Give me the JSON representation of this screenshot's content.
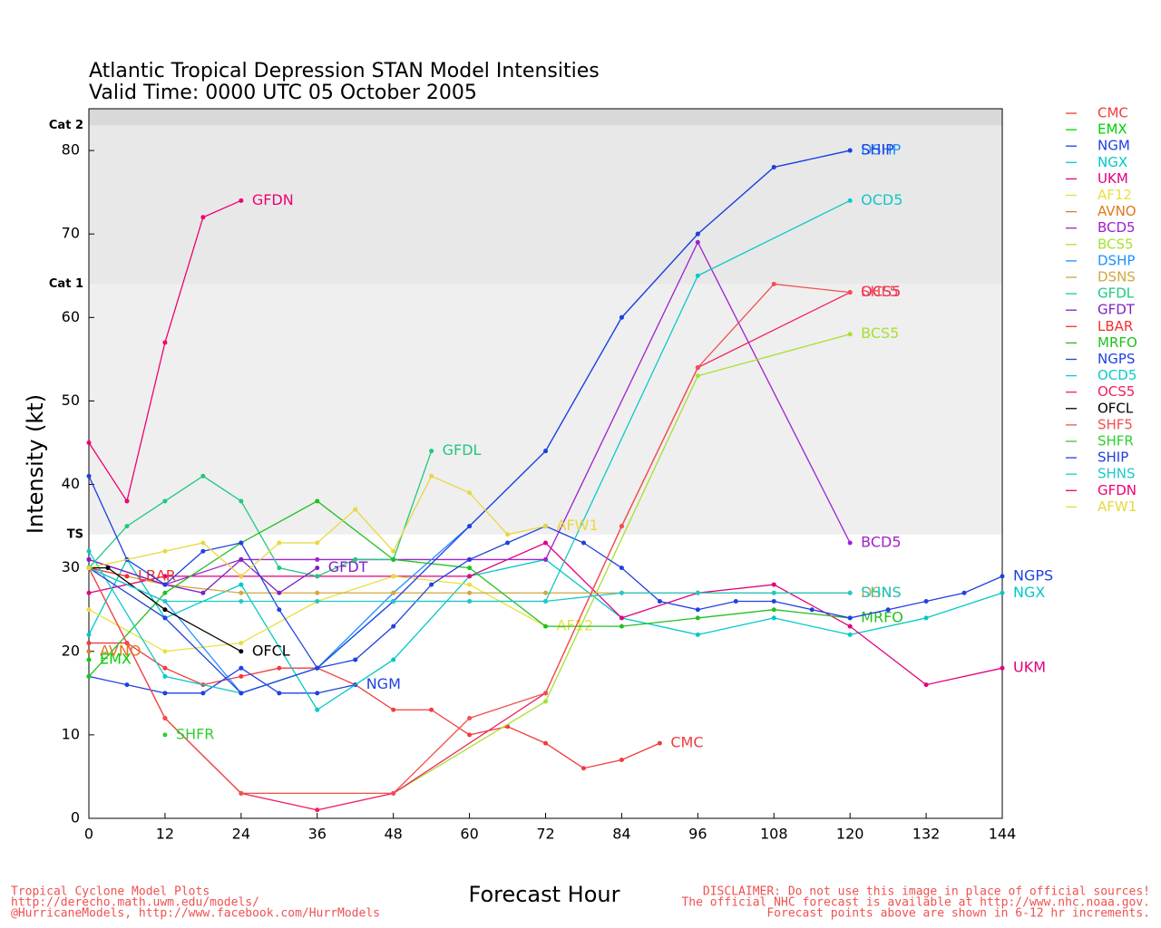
{
  "chart_data": {
    "type": "line",
    "title": "Atlantic Tropical Depression STAN Model Intensities",
    "subtitle": "Valid Time: 0000 UTC 05 October 2005",
    "xlabel": "Forecast Hour",
    "ylabel": "Intensity (kt)",
    "xlim": [
      0,
      144
    ],
    "ylim": [
      0,
      85
    ],
    "xticks": [
      0,
      12,
      24,
      36,
      48,
      60,
      72,
      84,
      96,
      108,
      120,
      132,
      144
    ],
    "yticks": [
      0,
      10,
      20,
      30,
      40,
      50,
      60,
      70,
      80
    ],
    "bands": [
      {
        "label": "TS",
        "from": 34,
        "color": "#efefef"
      },
      {
        "label": "Cat 1",
        "from": 64,
        "color": "#e8e8e8"
      },
      {
        "label": "Cat 2",
        "from": 83,
        "color": "#d9d9d9"
      }
    ],
    "series": [
      {
        "name": "CMC",
        "color": "#f03c3c",
        "x": [
          0,
          6,
          12,
          18,
          24,
          30,
          36,
          42,
          48,
          54,
          60,
          66,
          72,
          78,
          84,
          90
        ],
        "values": [
          21,
          21,
          18,
          16,
          17,
          18,
          18,
          16,
          13,
          13,
          10,
          11,
          9,
          6,
          7,
          9
        ]
      },
      {
        "name": "EMX",
        "color": "#00d000",
        "x": [
          0
        ],
        "values": [
          19
        ]
      },
      {
        "name": "NGM",
        "color": "#2040e0",
        "x": [
          0,
          6,
          12,
          18,
          24,
          30,
          36,
          42
        ],
        "values": [
          17,
          16,
          15,
          15,
          18,
          15,
          15,
          16
        ]
      },
      {
        "name": "NGX",
        "color": "#00c8c8",
        "x": [
          0,
          6,
          12,
          24,
          36,
          48,
          60,
          72,
          84,
          96,
          108,
          120,
          132,
          144
        ],
        "values": [
          22,
          31,
          24,
          28,
          13,
          19,
          29,
          31,
          24,
          22,
          24,
          22,
          24,
          27
        ]
      },
      {
        "name": "UKM",
        "color": "#e0007f",
        "x": [
          0,
          12,
          24,
          36,
          48,
          60,
          72,
          84,
          96,
          108,
          120,
          132,
          144
        ],
        "values": [
          27,
          29,
          29,
          29,
          29,
          29,
          33,
          24,
          27,
          28,
          23,
          16,
          18
        ]
      },
      {
        "name": "AF12",
        "color": "#e8e040",
        "x": [
          0,
          12,
          24,
          36,
          48,
          60,
          72
        ],
        "values": [
          25,
          20,
          21,
          26,
          29,
          28,
          23
        ]
      },
      {
        "name": "AVNO",
        "color": "#e07820",
        "x": [
          0
        ],
        "values": [
          20
        ]
      },
      {
        "name": "BCD5",
        "color": "#a020d0",
        "x": [
          0,
          12,
          24,
          36,
          48,
          60,
          72,
          96,
          120
        ],
        "values": [
          31,
          28,
          31,
          31,
          31,
          31,
          31,
          69,
          33
        ]
      },
      {
        "name": "BCS5",
        "color": "#a8e030",
        "x": [
          0,
          12,
          24,
          48,
          72,
          96,
          120
        ],
        "values": [
          30,
          12,
          3,
          3,
          14,
          53,
          58
        ]
      },
      {
        "name": "DSHP",
        "color": "#1e90ff",
        "x": [
          0,
          12,
          24,
          36,
          48,
          60,
          72,
          84,
          96,
          108,
          120
        ],
        "values": [
          30,
          26,
          15,
          18,
          27,
          35,
          44,
          60,
          70,
          78,
          80
        ]
      },
      {
        "name": "DSNS",
        "color": "#d0a840",
        "x": [
          0,
          12,
          24,
          36,
          48,
          60,
          72,
          84,
          96,
          108,
          120
        ],
        "values": [
          30,
          28,
          27,
          27,
          27,
          27,
          27,
          27,
          27,
          27,
          27
        ]
      },
      {
        "name": "GFDL",
        "color": "#20c880",
        "x": [
          0,
          6,
          12,
          18,
          24,
          30,
          36,
          42,
          48,
          54
        ],
        "values": [
          30,
          35,
          38,
          41,
          38,
          30,
          29,
          31,
          31,
          44
        ]
      },
      {
        "name": "GFDT",
        "color": "#8020c0",
        "x": [
          0,
          12,
          18,
          24,
          30,
          36
        ],
        "values": [
          31,
          28,
          27,
          31,
          27,
          30
        ]
      },
      {
        "name": "LBAR",
        "color": "#f03030",
        "x": [
          0,
          6
        ],
        "values": [
          30,
          29
        ]
      },
      {
        "name": "MRFO",
        "color": "#20c020",
        "x": [
          0,
          12,
          24,
          36,
          48,
          60,
          72,
          84,
          96,
          108,
          120
        ],
        "values": [
          17,
          27,
          33,
          38,
          31,
          30,
          23,
          23,
          24,
          25,
          24
        ]
      },
      {
        "name": "NGPS",
        "color": "#2040e0",
        "x": [
          0,
          6,
          12,
          18,
          24,
          30,
          36,
          42,
          48,
          54,
          60,
          66,
          72,
          78,
          84,
          90,
          96,
          102,
          108,
          114,
          120,
          126,
          132,
          138,
          144
        ],
        "values": [
          41,
          31,
          28,
          32,
          33,
          25,
          18,
          19,
          23,
          28,
          31,
          33,
          35,
          33,
          30,
          26,
          25,
          26,
          26,
          25,
          24,
          25,
          26,
          27,
          29
        ]
      },
      {
        "name": "OCD5",
        "color": "#10c8c8",
        "x": [
          0,
          12,
          24,
          36,
          48,
          60,
          72,
          96,
          120
        ],
        "values": [
          32,
          17,
          15,
          18,
          26,
          26,
          26,
          65,
          74
        ]
      },
      {
        "name": "OCS5",
        "color": "#f0205a",
        "x": [
          0,
          12,
          24,
          36,
          48,
          72,
          84,
          96,
          120
        ],
        "values": [
          30,
          12,
          3,
          1,
          3,
          15,
          35,
          54,
          63
        ]
      },
      {
        "name": "OFCL",
        "color": "#000000",
        "x": [
          0,
          3,
          12,
          24
        ],
        "values": [
          30,
          30,
          25,
          20
        ]
      },
      {
        "name": "SHF5",
        "color": "#f05050",
        "x": [
          0,
          12,
          24,
          48,
          60,
          72,
          84,
          96,
          108,
          120
        ],
        "values": [
          30,
          12,
          3,
          3,
          12,
          15,
          35,
          54,
          64,
          63
        ]
      },
      {
        "name": "SHFR",
        "color": "#30d030",
        "x": [
          12
        ],
        "values": [
          10
        ]
      },
      {
        "name": "SHIP",
        "color": "#2040e0",
        "x": [
          0,
          12,
          24,
          36,
          48,
          60,
          72,
          84,
          96,
          108,
          120
        ],
        "values": [
          30,
          24,
          15,
          18,
          26,
          35,
          44,
          60,
          70,
          78,
          80
        ]
      },
      {
        "name": "SHNS",
        "color": "#20c8c8",
        "x": [
          0,
          12,
          24,
          36,
          48,
          60,
          72,
          84,
          96,
          108,
          120
        ],
        "values": [
          30,
          26,
          26,
          26,
          26,
          26,
          26,
          27,
          27,
          27,
          27
        ]
      },
      {
        "name": "GFDN",
        "color": "#f00070",
        "x": [
          0,
          6,
          12,
          18,
          24
        ],
        "values": [
          45,
          38,
          57,
          72,
          74
        ]
      },
      {
        "name": "AFW1",
        "color": "#e8d840",
        "x": [
          0,
          12,
          18,
          24,
          30,
          36,
          42,
          48,
          54,
          60,
          66,
          72
        ],
        "values": [
          30,
          32,
          33,
          29,
          33,
          33,
          37,
          32,
          41,
          39,
          34,
          35
        ]
      }
    ]
  },
  "footer": {
    "left": [
      "Tropical Cyclone Model Plots",
      "http://derecho.math.uwm.edu/models/",
      "@HurricaneModels, http://www.facebook.com/HurrModels"
    ],
    "right": [
      "DISCLAIMER: Do not use this image in place of official sources!",
      "The official NHC forecast is available at http://www.nhc.noaa.gov.",
      "Forecast points above are shown in 6-12 hr increments."
    ]
  }
}
